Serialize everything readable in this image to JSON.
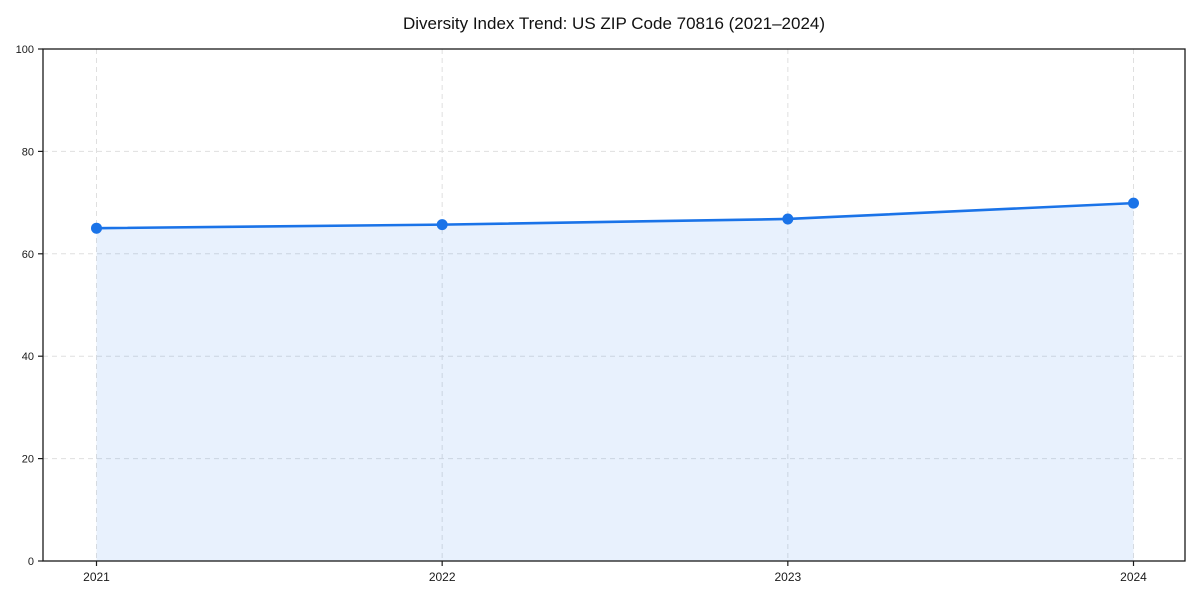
{
  "title": "Diversity Index Trend: US ZIP Code 70816 (2021–2024)",
  "chart_data": {
    "type": "area",
    "title": "Diversity Index Trend: US ZIP Code 70816 (2021–2024)",
    "categories": [
      "2021",
      "2022",
      "2023",
      "2024"
    ],
    "x": [
      2021,
      2022,
      2023,
      2024
    ],
    "series": [
      {
        "name": "Diversity Index",
        "values": [
          65.0,
          65.7,
          66.8,
          69.9
        ]
      }
    ],
    "xlabel": "",
    "ylabel": "",
    "ylim": [
      0,
      100
    ],
    "yticks": [
      0,
      20,
      40,
      60,
      80,
      100
    ],
    "grid": true,
    "grid_style": "dashed",
    "legend_position": "none",
    "colors": {
      "line": "#1a73e8",
      "marker": "#1a73e8",
      "fill": "rgba(26,115,232,0.10)",
      "grid": "#dfdfdf",
      "frame": "#1a1a1a",
      "tick_label": "#1a1a1a",
      "background": "#ffffff"
    }
  }
}
